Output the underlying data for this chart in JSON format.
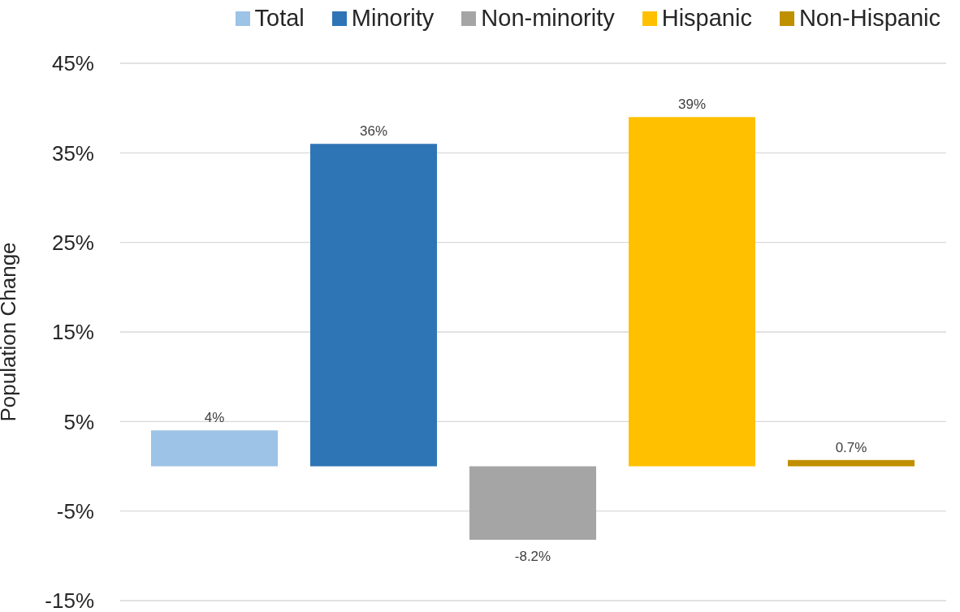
{
  "chart_data": {
    "type": "bar",
    "ylabel": "Population Change",
    "categories": [
      null
    ],
    "series": [
      {
        "name": "Total",
        "color": "#9dc3e6",
        "values": [
          4
        ],
        "value_labels": [
          "4%"
        ]
      },
      {
        "name": "Minority",
        "color": "#2e75b6",
        "values": [
          36
        ],
        "value_labels": [
          "36%"
        ]
      },
      {
        "name": "Non-minority",
        "color": "#a5a5a5",
        "values": [
          -8.2
        ],
        "value_labels": [
          "-8.2%"
        ]
      },
      {
        "name": "Hispanic",
        "color": "#ffc000",
        "values": [
          39
        ],
        "value_labels": [
          "39%"
        ]
      },
      {
        "name": "Non-Hispanic",
        "color": "#bf9000",
        "values": [
          0.7
        ],
        "value_labels": [
          "0.7%"
        ]
      }
    ],
    "ylim": [
      -15,
      45
    ],
    "yticks": [
      {
        "value": -15,
        "label": "-15%"
      },
      {
        "value": -5,
        "label": "-5%"
      },
      {
        "value": 5,
        "label": "5%"
      },
      {
        "value": 15,
        "label": "15%"
      },
      {
        "value": 25,
        "label": "25%"
      },
      {
        "value": 35,
        "label": "35%"
      },
      {
        "value": 45,
        "label": "45%"
      }
    ],
    "grid": "y",
    "legend": "top right"
  }
}
